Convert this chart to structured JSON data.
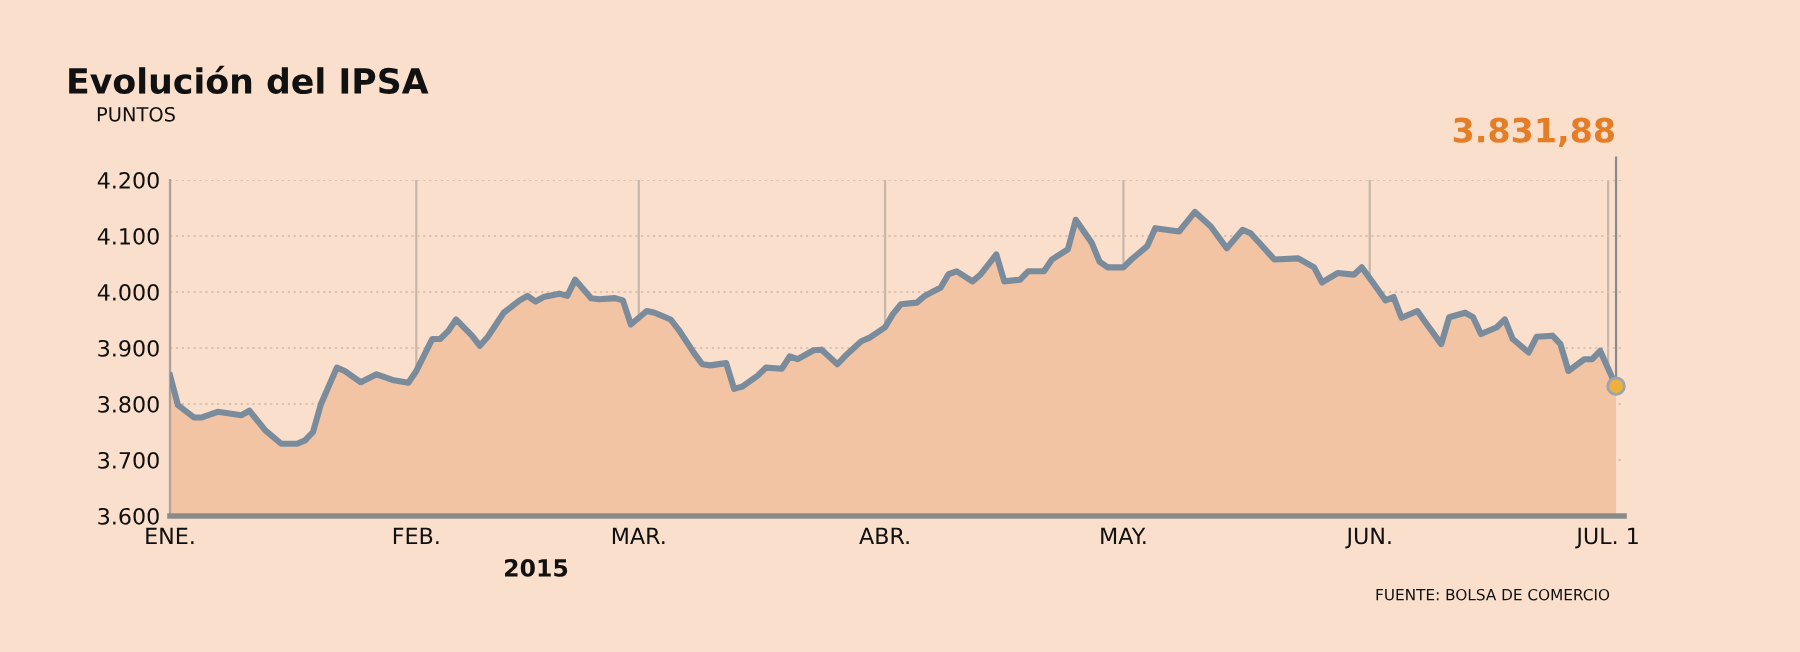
{
  "chart_data": {
    "type": "area",
    "title": "Evolución del IPSA",
    "ylabel": "PUNTOS",
    "xlabel": "2015",
    "x": [
      "2015-01-01",
      "2015-01-02",
      "2015-01-04",
      "2015-01-05",
      "2015-01-07",
      "2015-01-10",
      "2015-01-11",
      "2015-01-13",
      "2015-01-15",
      "2015-01-17",
      "2015-01-18",
      "2015-01-19",
      "2015-01-20",
      "2015-01-22",
      "2015-01-23",
      "2015-01-25",
      "2015-01-27",
      "2015-01-29",
      "2015-01-31",
      "2015-02-01",
      "2015-02-03",
      "2015-02-04",
      "2015-02-05",
      "2015-02-06",
      "2015-02-08",
      "2015-02-09",
      "2015-02-10",
      "2015-02-12",
      "2015-02-14",
      "2015-02-15",
      "2015-02-16",
      "2015-02-17",
      "2015-02-19",
      "2015-02-20",
      "2015-02-21",
      "2015-02-23",
      "2015-02-24",
      "2015-02-26",
      "2015-02-27",
      "2015-02-28",
      "2015-03-02",
      "2015-03-03",
      "2015-03-05",
      "2015-03-06",
      "2015-03-08",
      "2015-03-09",
      "2015-03-10",
      "2015-03-12",
      "2015-03-13",
      "2015-03-14",
      "2015-03-16",
      "2015-03-17",
      "2015-03-19",
      "2015-03-20",
      "2015-03-21",
      "2015-03-23",
      "2015-03-24",
      "2015-03-26",
      "2015-03-27",
      "2015-03-29",
      "2015-03-30",
      "2015-04-01",
      "2015-04-02",
      "2015-04-03",
      "2015-04-05",
      "2015-04-06",
      "2015-04-08",
      "2015-04-09",
      "2015-04-10",
      "2015-04-12",
      "2015-04-13",
      "2015-04-15",
      "2015-04-16",
      "2015-04-18",
      "2015-04-19",
      "2015-04-21",
      "2015-04-22",
      "2015-04-24",
      "2015-04-25",
      "2015-04-27",
      "2015-04-28",
      "2015-04-29",
      "2015-05-01",
      "2015-05-02",
      "2015-05-04",
      "2015-05-05",
      "2015-05-08",
      "2015-05-10",
      "2015-05-12",
      "2015-05-14",
      "2015-05-16",
      "2015-05-17",
      "2015-05-20",
      "2015-05-23",
      "2015-05-25",
      "2015-05-26",
      "2015-05-28",
      "2015-05-30",
      "2015-05-31",
      "2015-06-02",
      "2015-06-03",
      "2015-06-04",
      "2015-06-05",
      "2015-06-07",
      "2015-06-08",
      "2015-06-10",
      "2015-06-11",
      "2015-06-13",
      "2015-06-14",
      "2015-06-15",
      "2015-06-17",
      "2015-06-18",
      "2015-06-19",
      "2015-06-21",
      "2015-06-22",
      "2015-06-24",
      "2015-06-25",
      "2015-06-26",
      "2015-06-28",
      "2015-06-29",
      "2015-06-30",
      "2015-07-02"
    ],
    "series": [
      {
        "color": "#7a8c9c",
        "values": [
          3851,
          3798,
          3776,
          3776,
          3786,
          3780,
          3788,
          3753,
          3729,
          3729,
          3735,
          3750,
          3800,
          3865,
          3859,
          3839,
          3853,
          3843,
          3838,
          3859,
          3916,
          3916,
          3930,
          3951,
          3922,
          3904,
          3920,
          3963,
          3985,
          3993,
          3983,
          3991,
          3997,
          3993,
          4022,
          3989,
          3987,
          3989,
          3985,
          3942,
          3966,
          3963,
          3951,
          3933,
          3890,
          3871,
          3869,
          3873,
          3827,
          3831,
          3851,
          3865,
          3863,
          3885,
          3880,
          3896,
          3897,
          3871,
          3886,
          3912,
          3918,
          3937,
          3961,
          3978,
          3981,
          3993,
          4008,
          4032,
          4037,
          4019,
          4031,
          4067,
          4019,
          4022,
          4037,
          4037,
          4058,
          4076,
          4129,
          4088,
          4054,
          4044,
          4044,
          4058,
          4082,
          4114,
          4108,
          4143,
          4117,
          4078,
          4111,
          4105,
          4058,
          4060,
          4044,
          4017,
          4034,
          4031,
          4044,
          4005,
          3985,
          3991,
          3954,
          3966,
          3946,
          3907,
          3955,
          3963,
          3955,
          3925,
          3937,
          3951,
          3916,
          3892,
          3920,
          3922,
          3907,
          3859,
          3880,
          3880,
          3895,
          3831.88
        ]
      }
    ],
    "xlim": [
      "2015-01-01",
      "2015-07-03"
    ],
    "xticks": [
      {
        "value": "2015-01-01",
        "label": "ENE."
      },
      {
        "value": "2015-02-01",
        "label": "FEB."
      },
      {
        "value": "2015-03-01",
        "label": "MAR."
      },
      {
        "value": "2015-04-01",
        "label": "ABR."
      },
      {
        "value": "2015-05-01",
        "label": "MAY."
      },
      {
        "value": "2015-06-01",
        "label": "JUN."
      },
      {
        "value": "2015-07-01",
        "label": "JUL. 1"
      }
    ],
    "ylim": [
      3600,
      4200
    ],
    "yticks": [
      {
        "value": 3600,
        "label": "3.600"
      },
      {
        "value": 3700,
        "label": "3.700"
      },
      {
        "value": 3800,
        "label": "3.800"
      },
      {
        "value": 3900,
        "label": "3.900"
      },
      {
        "value": 4000,
        "label": "4.000"
      },
      {
        "value": 4100,
        "label": "4.100"
      },
      {
        "value": 4200,
        "label": "4.200"
      }
    ],
    "grid": true,
    "annotations": [
      {
        "text": "3.831,88",
        "x": "2015-07-02",
        "y": 3831.88
      },
      "FUENTE: BOLSA DE COMERCIO"
    ]
  }
}
